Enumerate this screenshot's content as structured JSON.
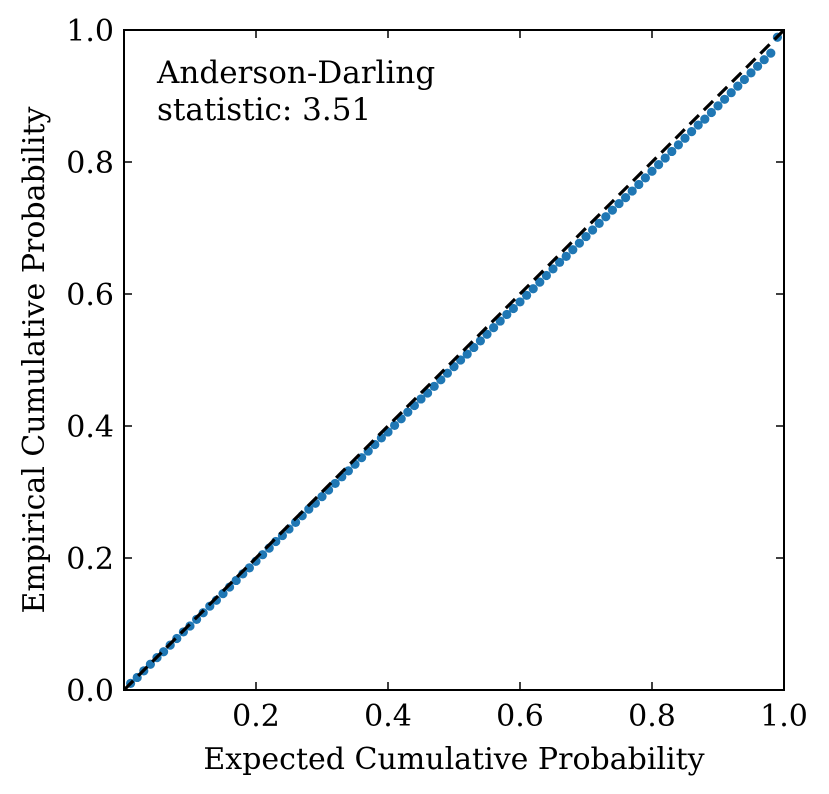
{
  "chart_data": {
    "type": "scatter",
    "xlabel": "Expected Cumulative Probability",
    "ylabel": "Empirical Cumulative Probability",
    "annotation": {
      "line1": "Anderson-Darling",
      "line2": "statistic:  3.51"
    },
    "xlim": [
      0.0,
      1.0
    ],
    "ylim": [
      0.0,
      1.0
    ],
    "x_ticks": [
      0.2,
      0.4,
      0.6,
      0.8,
      1.0
    ],
    "x_tick_labels": [
      "0.2",
      "0.4",
      "0.6",
      "0.8",
      "1.0"
    ],
    "y_ticks": [
      0.0,
      0.2,
      0.4,
      0.6,
      0.8,
      1.0
    ],
    "y_tick_labels": [
      "0.0",
      "0.2",
      "0.4",
      "0.6",
      "0.8",
      "1.0"
    ],
    "grid": false,
    "reference_line": {
      "style": "dashed",
      "color": "#000000",
      "from": [
        0.0,
        0.0
      ],
      "to": [
        1.0,
        1.0
      ]
    },
    "series": [
      {
        "color": "#1f77b4",
        "x": [
          0.01,
          0.02,
          0.03,
          0.04,
          0.05,
          0.06,
          0.07,
          0.08,
          0.09,
          0.1,
          0.11,
          0.12,
          0.13,
          0.14,
          0.15,
          0.16,
          0.17,
          0.18,
          0.19,
          0.2,
          0.21,
          0.22,
          0.23,
          0.24,
          0.25,
          0.26,
          0.27,
          0.28,
          0.29,
          0.3,
          0.31,
          0.32,
          0.33,
          0.34,
          0.35,
          0.36,
          0.37,
          0.38,
          0.39,
          0.4,
          0.41,
          0.42,
          0.43,
          0.44,
          0.45,
          0.46,
          0.47,
          0.48,
          0.49,
          0.5,
          0.51,
          0.52,
          0.53,
          0.54,
          0.55,
          0.56,
          0.57,
          0.58,
          0.59,
          0.6,
          0.61,
          0.62,
          0.63,
          0.64,
          0.65,
          0.66,
          0.67,
          0.68,
          0.69,
          0.7,
          0.71,
          0.72,
          0.73,
          0.74,
          0.75,
          0.76,
          0.77,
          0.78,
          0.79,
          0.8,
          0.81,
          0.82,
          0.83,
          0.84,
          0.85,
          0.86,
          0.87,
          0.88,
          0.89,
          0.9,
          0.91,
          0.92,
          0.93,
          0.94,
          0.95,
          0.96,
          0.97,
          0.98,
          0.99
        ],
        "y": [
          0.01,
          0.019,
          0.029,
          0.039,
          0.049,
          0.058,
          0.068,
          0.078,
          0.088,
          0.097,
          0.107,
          0.117,
          0.127,
          0.136,
          0.146,
          0.156,
          0.166,
          0.176,
          0.185,
          0.195,
          0.205,
          0.215,
          0.225,
          0.234,
          0.244,
          0.254,
          0.264,
          0.274,
          0.283,
          0.293,
          0.303,
          0.313,
          0.323,
          0.332,
          0.342,
          0.352,
          0.362,
          0.372,
          0.382,
          0.391,
          0.401,
          0.411,
          0.421,
          0.431,
          0.441,
          0.45,
          0.46,
          0.47,
          0.48,
          0.49,
          0.5,
          0.509,
          0.519,
          0.529,
          0.539,
          0.549,
          0.559,
          0.569,
          0.578,
          0.588,
          0.598,
          0.608,
          0.618,
          0.628,
          0.638,
          0.648,
          0.657,
          0.667,
          0.677,
          0.687,
          0.697,
          0.707,
          0.717,
          0.727,
          0.737,
          0.746,
          0.756,
          0.766,
          0.776,
          0.786,
          0.796,
          0.806,
          0.816,
          0.826,
          0.836,
          0.846,
          0.856,
          0.865,
          0.875,
          0.885,
          0.895,
          0.905,
          0.915,
          0.925,
          0.935,
          0.945,
          0.955,
          0.965,
          0.989
        ]
      }
    ]
  }
}
